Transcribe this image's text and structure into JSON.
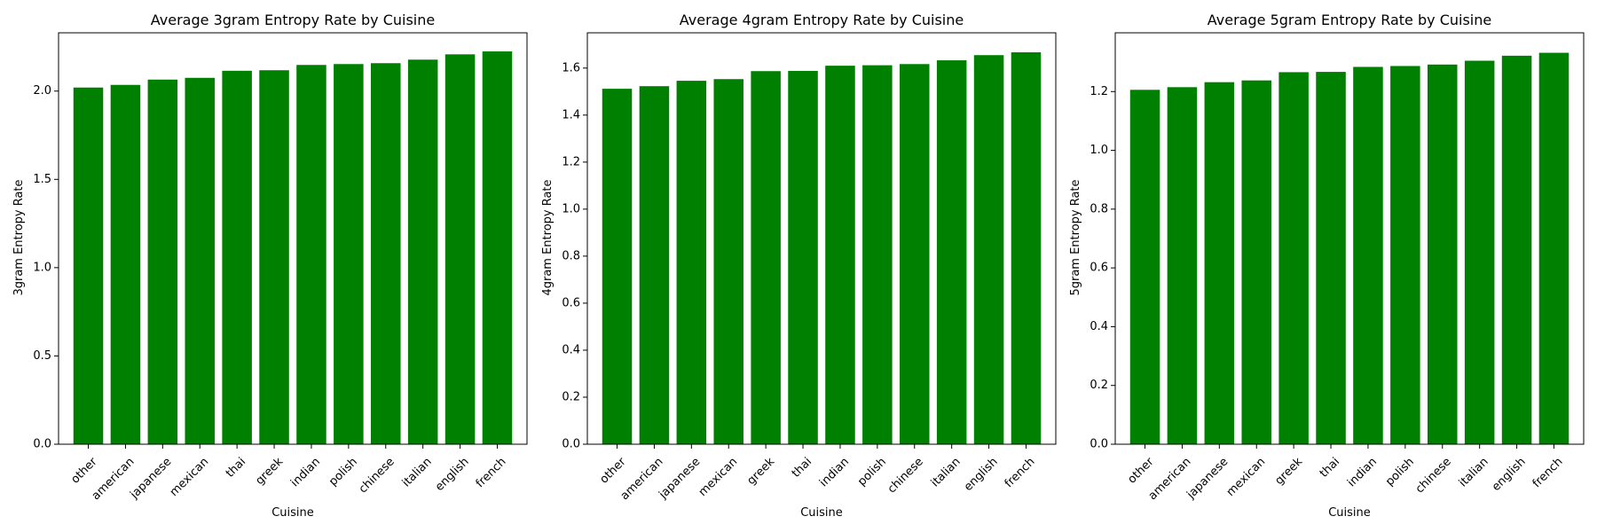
{
  "chart_data": [
    {
      "type": "bar",
      "title": "Average 3gram Entropy Rate by Cuisine",
      "xlabel": "Cuisine",
      "ylabel": "3gram Entropy Rate",
      "categories": [
        "other",
        "american",
        "japanese",
        "mexican",
        "thai",
        "greek",
        "indian",
        "polish",
        "chinese",
        "italian",
        "english",
        "french"
      ],
      "values": [
        2.02,
        2.035,
        2.065,
        2.075,
        2.115,
        2.118,
        2.148,
        2.153,
        2.158,
        2.178,
        2.208,
        2.225
      ],
      "ylim": [
        0,
        2.33
      ],
      "yticks": [
        0.0,
        0.5,
        1.0,
        1.5,
        2.0
      ],
      "ytick_labels": [
        "0.0",
        "0.5",
        "1.0",
        "1.5",
        "2.0"
      ],
      "color": "#008000",
      "grid": false
    },
    {
      "type": "bar",
      "title": "Average 4gram Entropy Rate by Cuisine",
      "xlabel": "Cuisine",
      "ylabel": "4gram Entropy Rate",
      "categories": [
        "other",
        "american",
        "japanese",
        "mexican",
        "greek",
        "thai",
        "indian",
        "polish",
        "chinese",
        "italian",
        "english",
        "french"
      ],
      "values": [
        1.512,
        1.523,
        1.546,
        1.553,
        1.587,
        1.588,
        1.61,
        1.612,
        1.617,
        1.633,
        1.655,
        1.667
      ],
      "ylim": [
        0,
        1.75
      ],
      "yticks": [
        0.0,
        0.2,
        0.4,
        0.6,
        0.8,
        1.0,
        1.2,
        1.4,
        1.6
      ],
      "ytick_labels": [
        "0.0",
        "0.2",
        "0.4",
        "0.6",
        "0.8",
        "1.0",
        "1.2",
        "1.4",
        "1.6"
      ],
      "color": "#008000",
      "grid": false
    },
    {
      "type": "bar",
      "title": "Average 5gram Entropy Rate by Cuisine",
      "xlabel": "Cuisine",
      "ylabel": "5gram Entropy Rate",
      "categories": [
        "other",
        "american",
        "japanese",
        "mexican",
        "greek",
        "thai",
        "indian",
        "polish",
        "chinese",
        "italian",
        "english",
        "french"
      ],
      "values": [
        1.206,
        1.215,
        1.232,
        1.238,
        1.266,
        1.267,
        1.284,
        1.287,
        1.292,
        1.305,
        1.322,
        1.332
      ],
      "ylim": [
        0,
        1.4
      ],
      "yticks": [
        0.0,
        0.2,
        0.4,
        0.6,
        0.8,
        1.0,
        1.2
      ],
      "ytick_labels": [
        "0.0",
        "0.2",
        "0.4",
        "0.6",
        "0.8",
        "1.0",
        "1.2"
      ],
      "color": "#008000",
      "grid": false
    }
  ]
}
